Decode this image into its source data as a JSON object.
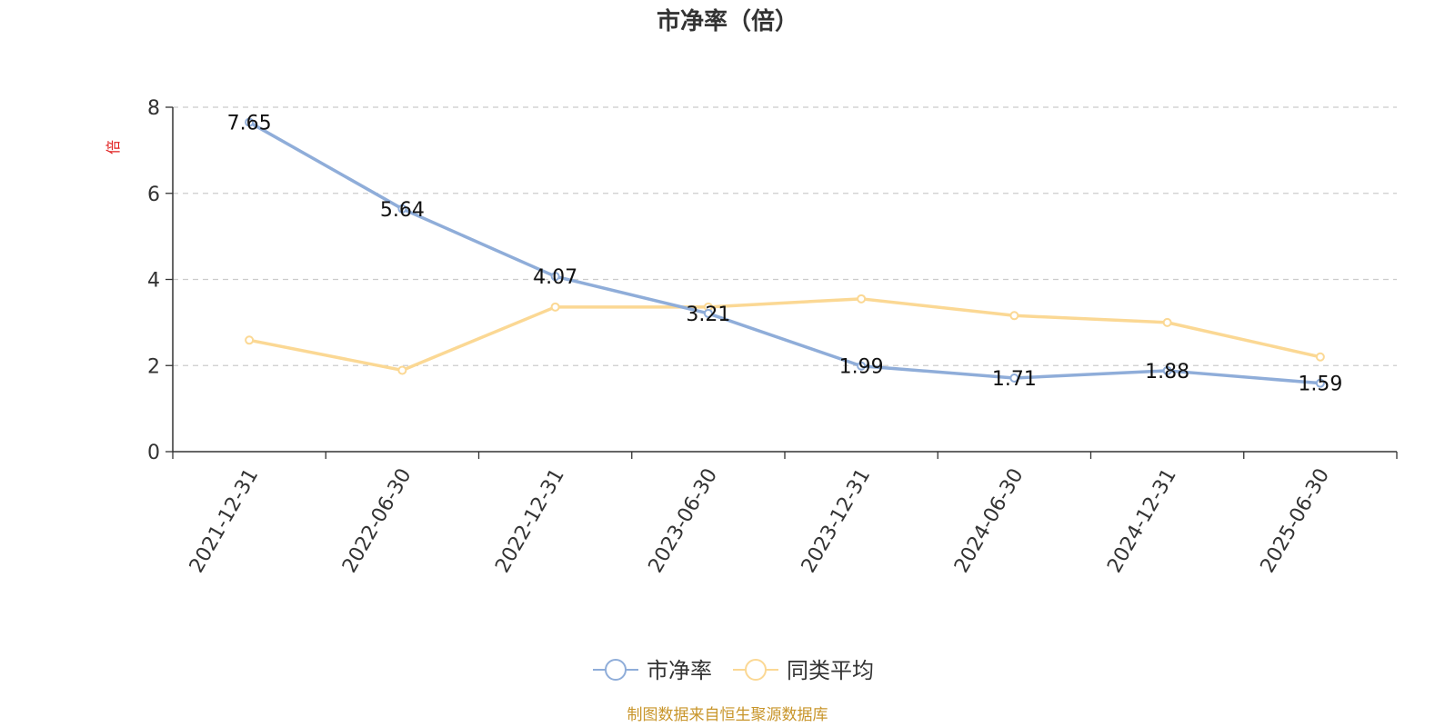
{
  "chart_data": {
    "type": "line",
    "title": "市净率（倍）",
    "ylabel": "倍",
    "categories": [
      "2021-12-31",
      "2022-06-30",
      "2022-12-31",
      "2023-06-30",
      "2023-12-31",
      "2024-06-30",
      "2024-12-31",
      "2025-06-30"
    ],
    "ylim": [
      0,
      8
    ],
    "yticks": [
      0,
      2,
      4,
      6,
      8
    ],
    "grid": true,
    "legend_position": "bottom-center",
    "series": [
      {
        "name": "市净率",
        "color": "#8fadd9",
        "show_labels": true,
        "values": [
          7.65,
          5.64,
          4.07,
          3.21,
          1.99,
          1.71,
          1.88,
          1.59
        ],
        "labels": [
          "7.65",
          "5.64",
          "4.07",
          "3.21",
          "1.99",
          "1.71",
          "1.88",
          "1.59"
        ]
      },
      {
        "name": "同类平均",
        "color": "#fbd894",
        "show_labels": false,
        "values": [
          2.59,
          1.89,
          3.36,
          3.36,
          3.55,
          3.16,
          3.0,
          2.2
        ]
      }
    ]
  },
  "unit_color": "#e02020",
  "source": {
    "text": "制图数据来自恒生聚源数据库",
    "color": "#c8952a"
  }
}
